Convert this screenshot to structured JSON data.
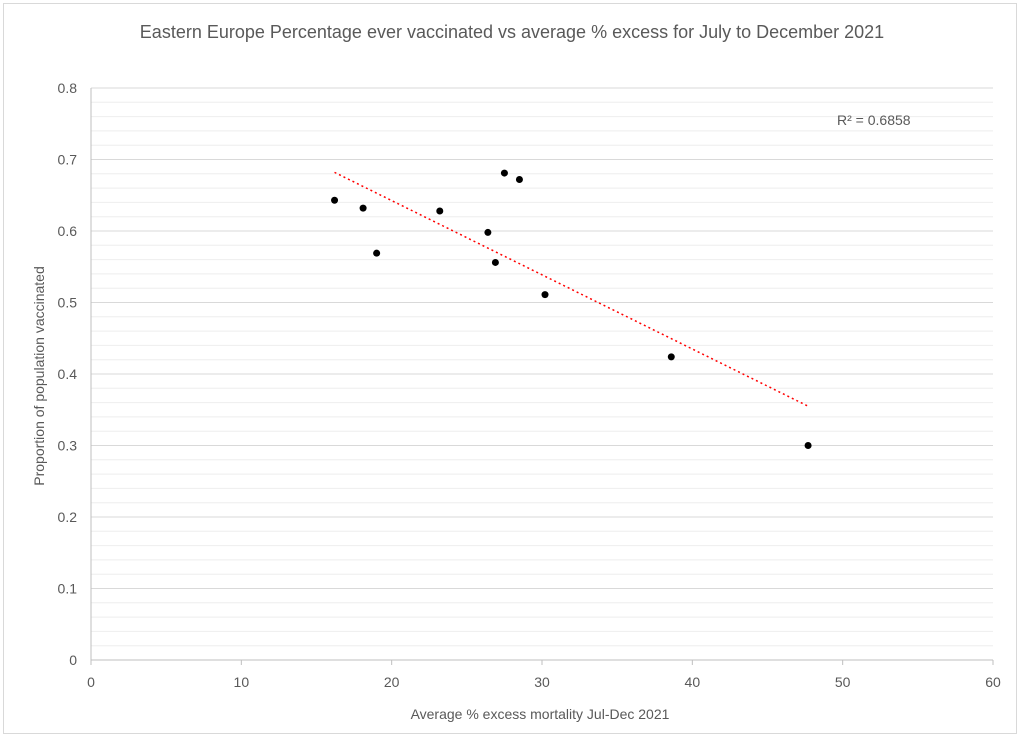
{
  "chart_data": {
    "type": "scatter",
    "title": "Eastern Europe Percentage ever vaccinated vs average % excess for July to December 2021",
    "xlabel": "Average % excess mortality Jul-Dec 2021",
    "ylabel": "Proportion of  population vaccinated",
    "xlim": [
      0,
      60
    ],
    "ylim": [
      0,
      0.8
    ],
    "x_ticks": [
      "0",
      "10",
      "20",
      "30",
      "40",
      "50",
      "60"
    ],
    "y_ticks": [
      "0",
      "0.1",
      "0.2",
      "0.3",
      "0.4",
      "0.5",
      "0.6",
      "0.7",
      "0.8"
    ],
    "grid": {
      "major": true,
      "minor": true
    },
    "legend": "none",
    "points": [
      {
        "x": 16.2,
        "y": 0.643
      },
      {
        "x": 18.1,
        "y": 0.632
      },
      {
        "x": 19.0,
        "y": 0.569
      },
      {
        "x": 23.2,
        "y": 0.628
      },
      {
        "x": 26.4,
        "y": 0.598
      },
      {
        "x": 26.9,
        "y": 0.556
      },
      {
        "x": 27.5,
        "y": 0.681
      },
      {
        "x": 28.5,
        "y": 0.672
      },
      {
        "x": 30.2,
        "y": 0.511
      },
      {
        "x": 38.6,
        "y": 0.424
      },
      {
        "x": 47.7,
        "y": 0.3
      }
    ],
    "trendline": {
      "type": "linear",
      "from": {
        "x": 16.2,
        "y": 0.682
      },
      "to": {
        "x": 47.7,
        "y": 0.355
      },
      "color": "#ff0000"
    },
    "r_squared_label": "R² = 0.6858",
    "colors": {
      "point": "#000000",
      "grid_major": "#d9d9d9",
      "grid_minor": "#eeeeee",
      "text": "#595959",
      "axis": "#bfbfbf"
    }
  }
}
